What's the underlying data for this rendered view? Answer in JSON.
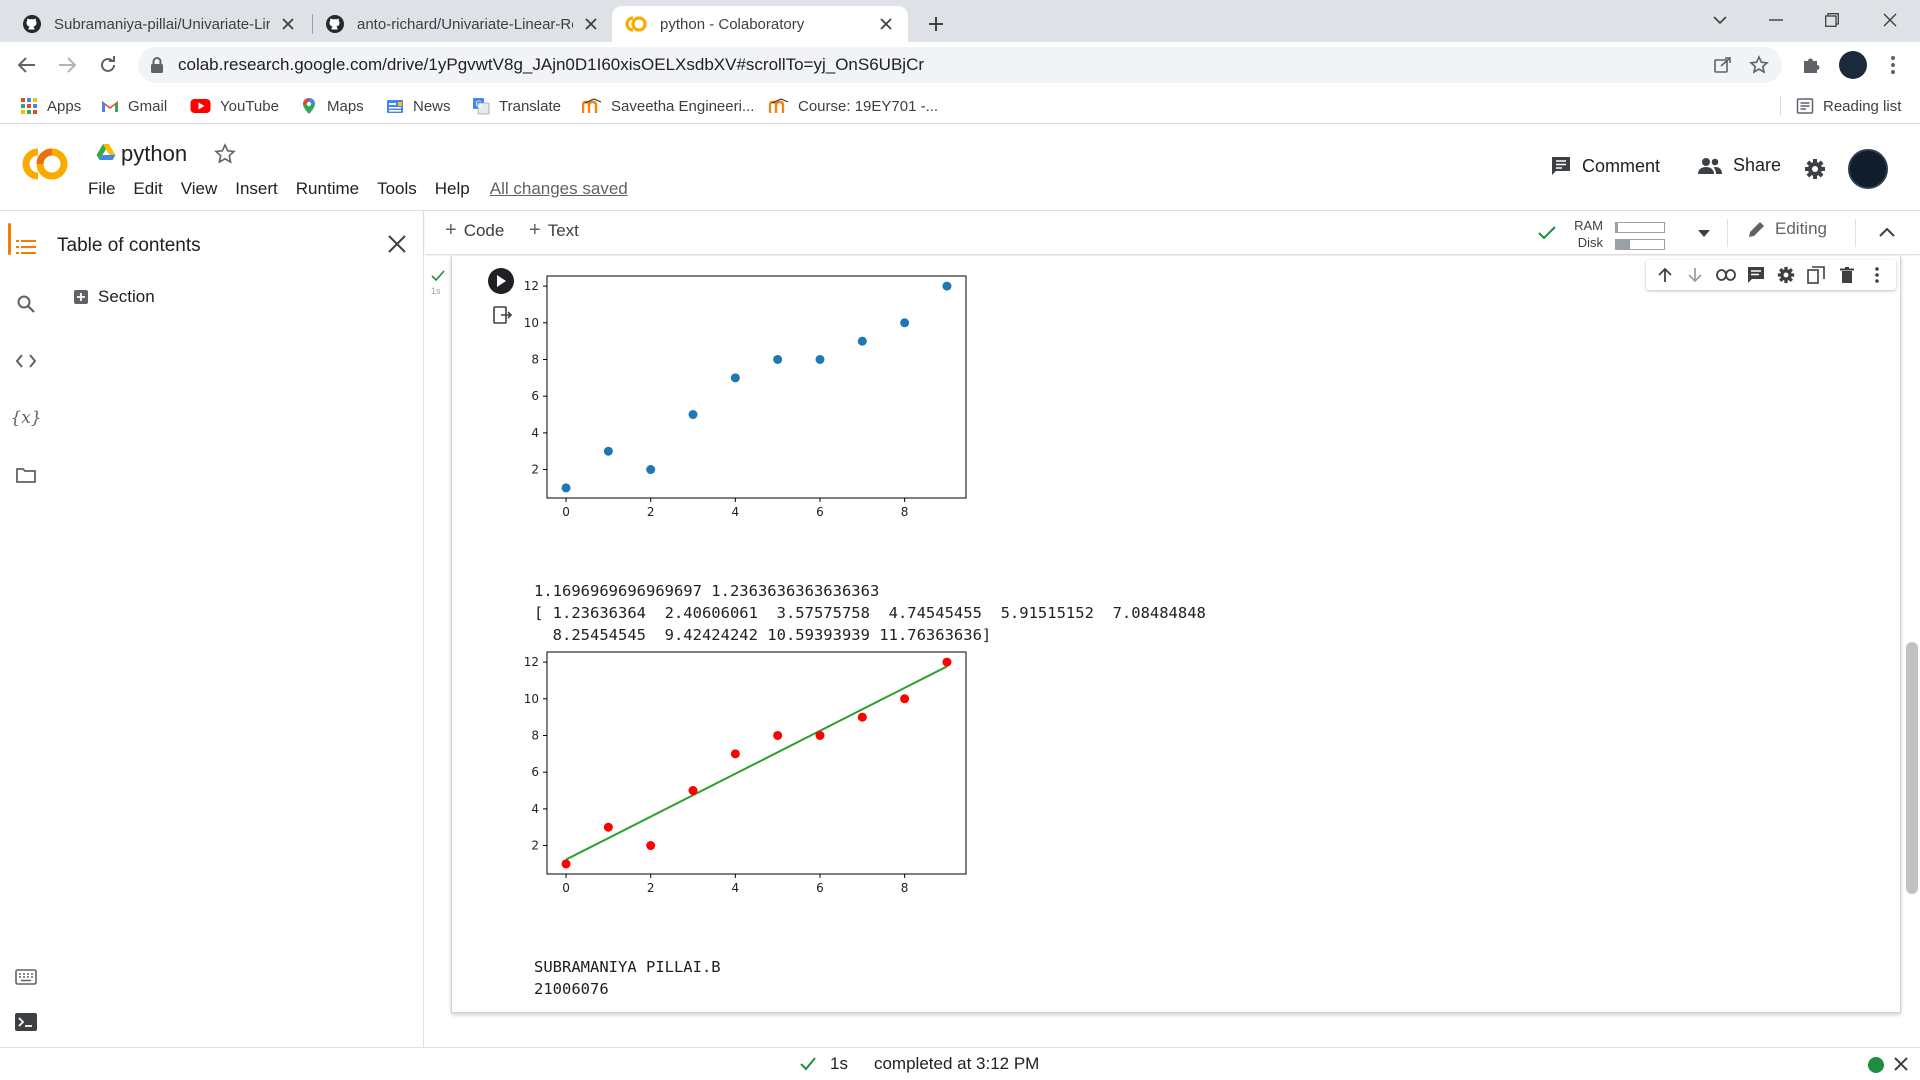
{
  "browser": {
    "tabs": [
      {
        "title": "Subramaniya-pillai/Univariate-Lir",
        "icon": "github-icon",
        "active": false
      },
      {
        "title": "anto-richard/Univariate-Linear-Re",
        "icon": "github-icon",
        "active": false
      },
      {
        "title": "python - Colaboratory",
        "icon": "colab-icon",
        "active": true
      }
    ],
    "url": "colab.research.google.com/drive/1yPgvwtV8g_JAjn0D1I60xisOELXsdbXV#scrollTo=yj_OnS6UBjCr",
    "bookmarks": [
      {
        "label": "Apps",
        "icon": "apps-grid-icon"
      },
      {
        "label": "Gmail",
        "icon": "gmail-icon"
      },
      {
        "label": "YouTube",
        "icon": "youtube-icon"
      },
      {
        "label": "Maps",
        "icon": "maps-pin-icon"
      },
      {
        "label": "News",
        "icon": "news-icon"
      },
      {
        "label": "Translate",
        "icon": "translate-icon"
      },
      {
        "label": "Saveetha Engineeri...",
        "icon": "moodle-icon"
      },
      {
        "label": "Course: 19EY701 -...",
        "icon": "moodle-icon"
      }
    ],
    "reading_list": "Reading list"
  },
  "colab": {
    "notebook_title": "python",
    "menu": [
      "File",
      "Edit",
      "View",
      "Insert",
      "Runtime",
      "Tools",
      "Help"
    ],
    "save_status": "All changes saved",
    "comment_label": "Comment",
    "share_label": "Share"
  },
  "sidebar": {
    "title": "Table of contents",
    "items": [
      {
        "label": "Section"
      }
    ]
  },
  "notebook_toolbar": {
    "add_code": "Code",
    "add_text": "Text",
    "ram_label": "RAM",
    "disk_label": "Disk",
    "ram_fraction": 0.04,
    "disk_fraction": 0.3,
    "editing_label": "Editing"
  },
  "cell": {
    "exec_time": "1s",
    "output_line_1": "1.1696969696969697 1.2363636363636363",
    "output_line_2": "[ 1.23636364  2.40606061  3.57575758  4.74545455  5.91515152  7.08484848",
    "output_line_3": "  8.25454545  9.42424242 10.59393939 11.76363636]",
    "footer_line_1": "SUBRAMANIYA PILLAI.B",
    "footer_line_2": "21006076"
  },
  "chart_data": [
    {
      "type": "scatter",
      "x": [
        0,
        1,
        2,
        3,
        4,
        5,
        6,
        7,
        8,
        9
      ],
      "y": [
        1,
        3,
        2,
        5,
        7,
        8,
        8,
        9,
        10,
        12
      ],
      "point_color": "#1f77b4",
      "xlim": [
        -0.45,
        9.45
      ],
      "ylim": [
        0.45,
        12.55
      ],
      "xticks": [
        0,
        2,
        4,
        6,
        8
      ],
      "yticks": [
        2,
        4,
        6,
        8,
        10,
        12
      ]
    },
    {
      "type": "scatter",
      "x": [
        0,
        1,
        2,
        3,
        4,
        5,
        6,
        7,
        8,
        9
      ],
      "y": [
        1,
        3,
        2,
        5,
        7,
        8,
        8,
        9,
        10,
        12
      ],
      "point_color": "#ff0000",
      "line": {
        "x": [
          0,
          9
        ],
        "y": [
          1.23636364,
          11.76363636
        ],
        "color": "#2ca02c"
      },
      "xlim": [
        -0.45,
        9.45
      ],
      "ylim": [
        0.45,
        12.55
      ],
      "xticks": [
        0,
        2,
        4,
        6,
        8
      ],
      "yticks": [
        2,
        4,
        6,
        8,
        10,
        12
      ]
    }
  ],
  "status": {
    "duration": "1s",
    "message": "completed at 3:12 PM"
  }
}
